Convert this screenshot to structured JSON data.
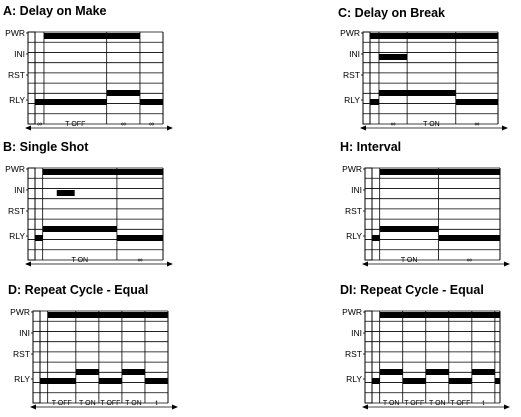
{
  "signal_labels": [
    "PWR",
    "INI",
    "RST",
    "RLY"
  ],
  "panels": [
    {
      "id": "A",
      "title": "A: Delay on Make",
      "waves": {
        "PWR": [
          [
            0,
            0
          ],
          [
            0.07,
            1
          ],
          [
            0.82,
            0
          ]
        ],
        "INI": [
          [
            0,
            0
          ]
        ],
        "RST": [
          [
            0,
            0
          ]
        ],
        "RLY": [
          [
            0,
            1
          ],
          [
            0.56,
            0
          ],
          [
            0.56,
            2
          ],
          [
            0.82,
            0
          ],
          [
            0.82,
            1
          ]
        ]
      },
      "edges": [
        0.07,
        0.56,
        0.82
      ],
      "segments": [
        {
          "from": 0.0,
          "to": 0.07,
          "label": "∞"
        },
        {
          "from": 0.07,
          "to": 0.56,
          "label": "T OFF"
        },
        {
          "from": 0.56,
          "to": 0.82,
          "label": "∞"
        },
        {
          "from": 0.82,
          "to": 1.0,
          "label": "∞"
        }
      ]
    },
    {
      "id": "C",
      "title": "C: Delay on Break",
      "waves": {
        "PWR": [
          [
            0,
            1
          ]
        ],
        "INI": [
          [
            0,
            0
          ],
          [
            0.07,
            1
          ],
          [
            0.29,
            0
          ]
        ],
        "RST": [
          [
            0,
            0
          ]
        ],
        "RLY": [
          [
            0,
            1
          ],
          [
            0.07,
            2
          ],
          [
            0.67,
            0
          ],
          [
            0.67,
            1
          ]
        ]
      },
      "edges": [
        0.07,
        0.29,
        0.67
      ],
      "segments": [
        {
          "from": 0.07,
          "to": 0.29,
          "label": "∞"
        },
        {
          "from": 0.29,
          "to": 0.67,
          "label": "T ON"
        },
        {
          "from": 0.67,
          "to": 1.0,
          "label": "∞"
        }
      ]
    },
    {
      "id": "B",
      "title": "B: Single Shot",
      "waves": {
        "PWR": [
          [
            0,
            0
          ],
          [
            0.06,
            1
          ]
        ],
        "INI": [
          [
            0,
            0
          ],
          [
            0.17,
            1
          ],
          [
            0.31,
            0
          ]
        ],
        "RST": [
          [
            0,
            0
          ]
        ],
        "RLY": [
          [
            0,
            1
          ],
          [
            0.06,
            2
          ],
          [
            0.64,
            0
          ],
          [
            0.64,
            1
          ]
        ]
      },
      "edges": [
        0.06,
        0.64
      ],
      "segments": [
        {
          "from": 0.06,
          "to": 0.64,
          "label": "T ON"
        },
        {
          "from": 0.64,
          "to": 1.0,
          "label": "∞"
        }
      ]
    },
    {
      "id": "H",
      "title": "H: Interval",
      "waves": {
        "PWR": [
          [
            0,
            0
          ],
          [
            0.06,
            1
          ]
        ],
        "INI": [
          [
            0,
            0
          ]
        ],
        "RST": [
          [
            0,
            0
          ]
        ],
        "RLY": [
          [
            0,
            1
          ],
          [
            0.06,
            2
          ],
          [
            0.52,
            0
          ],
          [
            0.52,
            1
          ]
        ]
      },
      "edges": [
        0.06,
        0.52
      ],
      "segments": [
        {
          "from": 0.06,
          "to": 0.52,
          "label": "T ON"
        },
        {
          "from": 0.52,
          "to": 1.0,
          "label": "∞"
        }
      ]
    },
    {
      "id": "D",
      "title": "D: Repeat Cycle - Equal",
      "waves": {
        "PWR": [
          [
            0,
            0
          ],
          [
            0.06,
            1
          ]
        ],
        "INI": [
          [
            0,
            0
          ]
        ],
        "RST": [
          [
            0,
            0
          ]
        ],
        "RLY": [
          [
            0,
            1
          ],
          [
            0.06,
            0
          ],
          [
            0.06,
            1
          ],
          [
            0.28,
            0
          ],
          [
            0.28,
            2
          ],
          [
            0.46,
            0
          ],
          [
            0.46,
            1
          ],
          [
            0.64,
            0
          ],
          [
            0.64,
            2
          ],
          [
            0.82,
            0
          ],
          [
            0.82,
            1
          ]
        ]
      },
      "edges": [
        0.06,
        0.28,
        0.46,
        0.64,
        0.82
      ],
      "segments": [
        {
          "from": 0.06,
          "to": 0.28,
          "label": "T OFF"
        },
        {
          "from": 0.28,
          "to": 0.46,
          "label": "T ON"
        },
        {
          "from": 0.46,
          "to": 0.64,
          "label": "T OFF"
        },
        {
          "from": 0.64,
          "to": 0.82,
          "label": "T ON"
        },
        {
          "from": 0.82,
          "to": 1.0,
          "label": "t"
        }
      ]
    },
    {
      "id": "DI",
      "title": "DI: Repeat Cycle - Equal",
      "waves": {
        "PWR": [
          [
            0,
            0
          ],
          [
            0.06,
            1
          ]
        ],
        "INI": [
          [
            0,
            0
          ]
        ],
        "RST": [
          [
            0,
            0
          ]
        ],
        "RLY": [
          [
            0,
            1
          ],
          [
            0.06,
            2
          ],
          [
            0.24,
            0
          ],
          [
            0.24,
            1
          ],
          [
            0.42,
            0
          ],
          [
            0.42,
            2
          ],
          [
            0.6,
            0
          ],
          [
            0.6,
            1
          ],
          [
            0.78,
            0
          ],
          [
            0.78,
            2
          ],
          [
            0.96,
            0
          ],
          [
            0.96,
            1
          ]
        ]
      },
      "edges": [
        0.06,
        0.24,
        0.42,
        0.6,
        0.78,
        0.96
      ],
      "segments": [
        {
          "from": 0.06,
          "to": 0.24,
          "label": "T ON"
        },
        {
          "from": 0.24,
          "to": 0.42,
          "label": "T OFF"
        },
        {
          "from": 0.42,
          "to": 0.6,
          "label": "T ON"
        },
        {
          "from": 0.6,
          "to": 0.78,
          "label": "T OFF"
        },
        {
          "from": 0.78,
          "to": 0.96,
          "label": "t"
        }
      ]
    }
  ]
}
